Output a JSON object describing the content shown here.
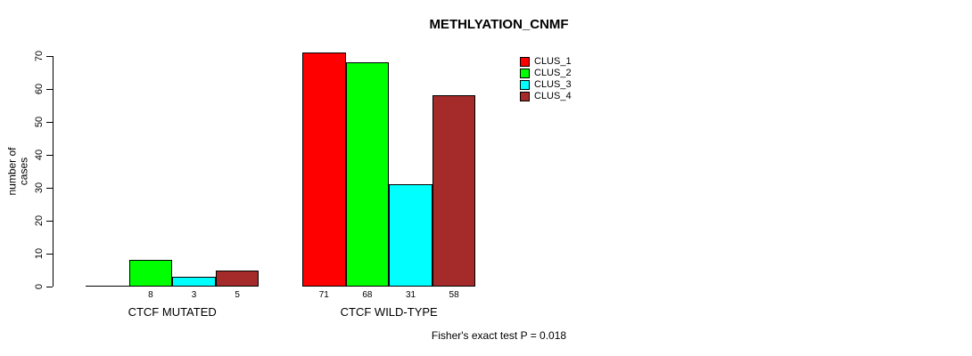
{
  "chart_data": {
    "type": "bar",
    "title": "METHLYATION_CNMF",
    "xlabel": "",
    "ylabel": "number of cases",
    "categories": [
      "CTCF MUTATED",
      "CTCF WILD-TYPE"
    ],
    "series": [
      {
        "name": "CLUS_1",
        "color": "#FF0000",
        "values": [
          0,
          71
        ]
      },
      {
        "name": "CLUS_2",
        "color": "#00FF00",
        "values": [
          8,
          68
        ]
      },
      {
        "name": "CLUS_3",
        "color": "#00FFFF",
        "values": [
          3,
          31
        ]
      },
      {
        "name": "CLUS_4",
        "color": "#A52A2A",
        "values": [
          5,
          58
        ]
      }
    ],
    "bar_value_labels": [
      [
        "",
        "8",
        "3",
        "5"
      ],
      [
        "71",
        "68",
        "31",
        "58"
      ]
    ],
    "yticks": [
      "0",
      "10",
      "20",
      "30",
      "40",
      "50",
      "60",
      "70"
    ],
    "ylim": [
      0,
      70
    ],
    "grid": false,
    "legend_position": "top-right",
    "annotation": "Fisher's exact test P = 0.018"
  }
}
